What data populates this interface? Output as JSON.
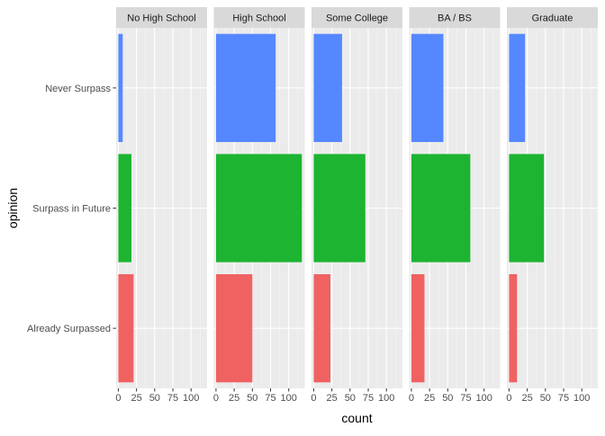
{
  "chart_data": {
    "type": "bar",
    "orientation": "horizontal",
    "faceted_by": "education",
    "xlabel": "count",
    "ylabel": "opinion",
    "xlim": [
      -3,
      122
    ],
    "xticks": [
      0,
      25,
      50,
      75,
      100
    ],
    "grid": true,
    "legend": "none",
    "categories": [
      "Never Surpass",
      "Surpass in Future",
      "Already Surpassed"
    ],
    "colors": {
      "Never Surpass": "#5588FF",
      "Surpass in Future": "#1CB430",
      "Already Surpassed": "#F06262"
    },
    "facets": [
      {
        "name": "No High School",
        "values": [
          6,
          18,
          21
        ]
      },
      {
        "name": "High School",
        "values": [
          82,
          118,
          50
        ]
      },
      {
        "name": "Some College",
        "values": [
          39,
          71,
          23
        ]
      },
      {
        "name": "BA / BS",
        "values": [
          44,
          81,
          18
        ]
      },
      {
        "name": "Graduate",
        "values": [
          22,
          48,
          11
        ]
      }
    ]
  },
  "theme": {
    "panel_bg": "#EBEBEB",
    "strip_bg": "#D9D9D9",
    "grid_major": "#FFFFFF",
    "grid_minor": "#F5F5F5",
    "text": "#4D4D4D",
    "title_text": "#000000"
  }
}
